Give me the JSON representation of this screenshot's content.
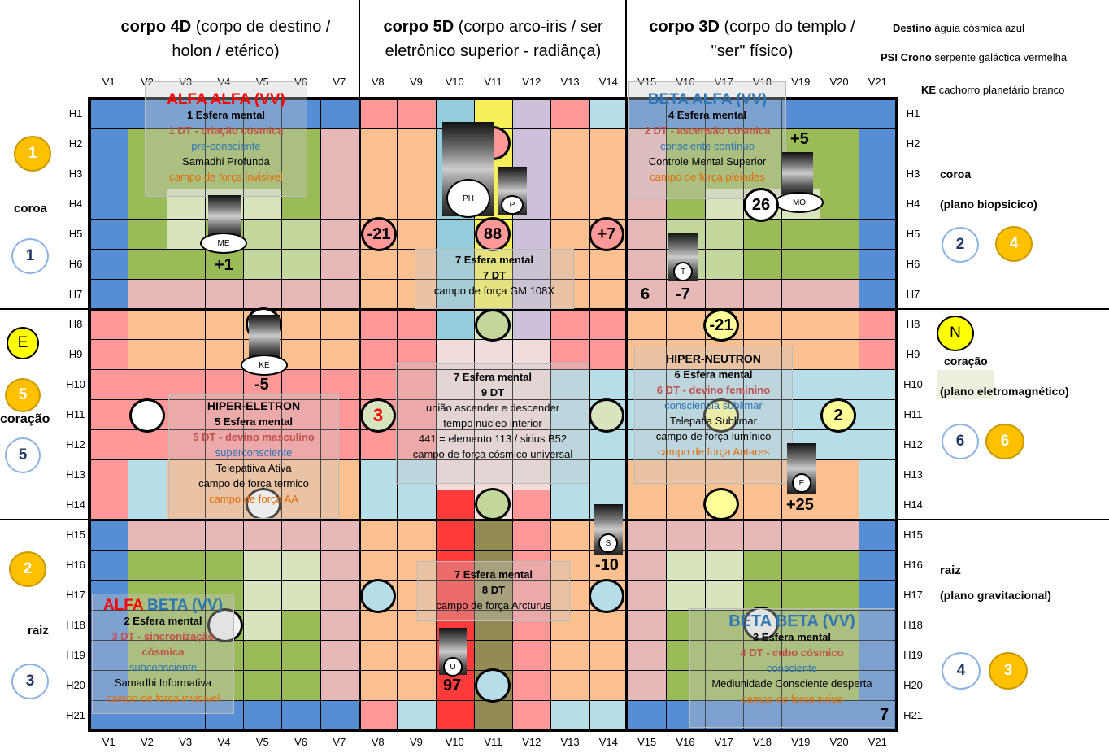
{
  "headers": [
    {
      "bold": "corpo 4D",
      "rest": " (corpo de destino / holon / etérico)"
    },
    {
      "bold": "corpo 5D",
      "rest": " (corpo arco-iris / ser eletrônico superior - radiânça)"
    },
    {
      "bold": "corpo 3D",
      "rest": " (corpo do templo / \"ser\" físico)"
    }
  ],
  "info": [
    {
      "key": "Destino",
      "value": "águia cósmica azul"
    },
    {
      "key": "PSI Crono",
      "value": "serpente galáctica vermelha"
    },
    {
      "key": "KE",
      "value": "cachorro planetário branco"
    }
  ],
  "columns": [
    "V1",
    "V2",
    "V3",
    "V4",
    "V5",
    "V6",
    "V7",
    "V8",
    "V9",
    "V10",
    "V11",
    "V12",
    "V13",
    "V14",
    "V15",
    "V16",
    "V17",
    "V18",
    "V19",
    "V20",
    "V21"
  ],
  "rows": [
    "H1",
    "H2",
    "H3",
    "H4",
    "H5",
    "H6",
    "H7",
    "H8",
    "H9",
    "H10",
    "H11",
    "H12",
    "H13",
    "H14",
    "H15",
    "H16",
    "H17",
    "H18",
    "H19",
    "H20",
    "H21"
  ],
  "left_side": {
    "coroa": {
      "label": "coroa",
      "yellow": "1",
      "white": "1"
    },
    "coracao": {
      "label": "coração",
      "e": "E",
      "yellow": "5",
      "white": "5"
    },
    "raiz": {
      "label": "raiz",
      "yellow": "2",
      "white": "3"
    }
  },
  "right_side": {
    "coroa": {
      "label": "coroa",
      "plane": "(plano biopsicico)",
      "white": "2",
      "yellow": "4"
    },
    "coracao": {
      "n": "N",
      "label": "coração",
      "plane": "(plano eletromagnético)",
      "white": "6",
      "yellow": "6"
    },
    "raiz": {
      "label": "raiz",
      "plane": "(plano gravitacional)",
      "white": "4",
      "yellow": "3"
    }
  },
  "overlays": {
    "alfa_alfa": {
      "title": "ALFA ALFA (VV)",
      "l1": "1 Esfera mental",
      "l2": "1 DT - criação cósmica",
      "l3": "pre-consciente",
      "l4": "Samadhi  Profunda",
      "l5": "campo de força invisível"
    },
    "beta_alfa": {
      "title": "BETA ALFA (VV)",
      "l1": "4 Esfera mental",
      "l2": "2 DT - ascensão cósmica",
      "l3": "consciente contínuo",
      "l4": "Controle Mental Superior",
      "l5": "campo de força pleiades"
    },
    "center_top": {
      "l1": "7 Esfera mental",
      "l2": "7 DT",
      "l3": "campo de força GM 108X"
    },
    "hiper_eletron": {
      "title": "HIPER-ELETRON",
      "l1": "5 Esfera mental",
      "l2": "5 DT - devino masculino",
      "l3": "superconsciente",
      "l4": "Telepatiiva Ativa",
      "l5": "campo de força termico",
      "l6": "campo de força AA"
    },
    "center_mid": {
      "l1": "7 Esfera mental",
      "l2": "9 DT",
      "l3": "união ascender e descender",
      "l4": "tempo núcleo interior",
      "l5": "441 = elemento 113 / sirius B52",
      "l6": "campo de força cósmico universal"
    },
    "hiper_neutron": {
      "title": "HIPER-NEUTRON",
      "l1": "6 Esfera mental",
      "l2": "6 DT - devino feminino",
      "l3": "consciencia sublimar",
      "l4": "Telepatia Sublimar",
      "l5": "campo de força lumínico",
      "l6": "campo de força Antares"
    },
    "center_bot": {
      "l1": "7 Esfera mental",
      "l2": "8 DT",
      "l3": "campo de força Arcturus"
    },
    "alfa_beta": {
      "title_a": "ALFA ",
      "title_b": "BETA (VV)",
      "l1": "2 Esfera mental",
      "l2": "3 DT - sincronização cósmica",
      "l3": "subconsciente",
      "l4": "Samadhi  Informativa",
      "l5": "campo de força invisível"
    },
    "beta_beta": {
      "title": "BETA BETA (VV)",
      "l1": "3 Esfera mental",
      "l2": "4 DT - cubo cósmico",
      "l3": "consciente",
      "l4": "Mediunidade Consciente desperta",
      "l5": "campo de força sirius"
    }
  },
  "circles": {
    "c1": "-21",
    "c2": "88",
    "c3": "+7",
    "c4": "-21",
    "c5": "3",
    "c6": "2"
  },
  "crystals": {
    "me": "ME",
    "ph": "PH",
    "p": "P",
    "mo": "MO",
    "t": "T",
    "ke": "KE",
    "e": "E",
    "s": "S",
    "u": "U"
  },
  "numbers": {
    "n1": "+1",
    "n2": "+5",
    "n3": "26",
    "n4": "6",
    "n5": "-7",
    "n6": "-5",
    "n7": "+25",
    "n8": "-10",
    "n9": "97",
    "n10": "7"
  },
  "colors": {
    "blue": "#558ed5",
    "green": "#9bbb59",
    "orange": "#fac090",
    "salmon": "#ff9999",
    "yellow": "#ffc000"
  }
}
